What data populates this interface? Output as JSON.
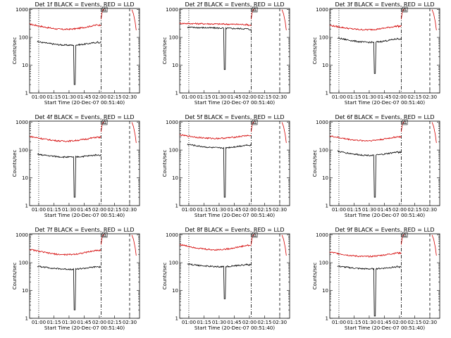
{
  "chart_data": [
    {
      "type": "line",
      "title": "Det 1f BLACK = Events, RED = LLD",
      "xlabel": "Start Time (20-Dec-07 00:51:40)",
      "ylabel": "Counts/sec",
      "yscale": "log",
      "ylim": [
        1,
        1100
      ],
      "xlim": [
        0,
        100
      ],
      "x_ticks": [
        "01:00",
        "01:15",
        "01:30",
        "01:45",
        "02:00",
        "02:15",
        "02:30"
      ],
      "y_ticks": [
        "1",
        "10",
        "100",
        "1000"
      ],
      "vlines": {
        "dotted": [
          8.3
        ],
        "dashdot": [
          65
        ],
        "dashed": [
          91
        ]
      },
      "series": [
        {
          "name": "LLD",
          "color": "#d40000",
          "profile": "bowl",
          "start": 0,
          "end": 65,
          "base": 300,
          "dip": 0.65
        },
        {
          "name": "Events",
          "color": "#000000",
          "profile": "bowl",
          "start": 7,
          "end": 65,
          "base": 70,
          "dip": 0.75,
          "spike_at": 41,
          "spike_val": 2
        }
      ],
      "flare": {
        "x": [
          65,
          66,
          67,
          68
        ],
        "y": [
          450,
          850,
          1000,
          1050
        ]
      },
      "decay": {
        "x": [
          93,
          94.5,
          96,
          97
        ],
        "y": [
          1000,
          700,
          350,
          180
        ]
      },
      "annotation": "Δ"
    },
    {
      "type": "line",
      "title": "Det 2f BLACK = Events, RED = LLD",
      "xlabel": "Start Time (20-Dec-07 00:51:40)",
      "ylabel": "Counts/sec",
      "yscale": "log",
      "ylim": [
        1,
        1100
      ],
      "xlim": [
        0,
        100
      ],
      "x_ticks": [
        "01:00",
        "01:15",
        "01:30",
        "01:45",
        "02:00",
        "02:15",
        "02:30"
      ],
      "y_ticks": [
        "1",
        "10",
        "100",
        "1000"
      ],
      "vlines": {
        "dotted": [
          8.3
        ],
        "dashdot": [
          65
        ],
        "dashed": [
          91
        ]
      },
      "series": [
        {
          "name": "LLD",
          "color": "#d40000",
          "profile": "flat",
          "start": 0,
          "end": 65,
          "base": 320,
          "dip": 0.9
        },
        {
          "name": "Events",
          "color": "#000000",
          "profile": "flat",
          "start": 7,
          "end": 65,
          "base": 230,
          "dip": 0.88,
          "spike_at": 41,
          "spike_val": 7
        }
      ],
      "flare": {
        "x": [
          65,
          66,
          67,
          68
        ],
        "y": [
          450,
          850,
          1000,
          1050
        ]
      },
      "decay": {
        "x": [
          93,
          94.5,
          96,
          97
        ],
        "y": [
          1000,
          700,
          350,
          180
        ]
      },
      "annotation": "Δ"
    },
    {
      "type": "line",
      "title": "Det 3f BLACK = Events, RED = LLD",
      "xlabel": "Start Time (20-Dec-07 00:51:40)",
      "ylabel": "Counts/sec",
      "yscale": "log",
      "ylim": [
        1,
        1100
      ],
      "xlim": [
        0,
        100
      ],
      "x_ticks": [
        "01:00",
        "01:15",
        "01:30",
        "01:45",
        "02:00",
        "02:15",
        "02:30"
      ],
      "y_ticks": [
        "1",
        "10",
        "100",
        "1000"
      ],
      "vlines": {
        "dotted": [
          8.3
        ],
        "dashdot": [
          65
        ],
        "dashed": [
          91
        ]
      },
      "series": [
        {
          "name": "LLD",
          "color": "#d40000",
          "profile": "bowl",
          "start": 0,
          "end": 65,
          "base": 270,
          "dip": 0.7
        },
        {
          "name": "Events",
          "color": "#000000",
          "profile": "bowl",
          "start": 7,
          "end": 65,
          "base": 95,
          "dip": 0.7,
          "spike_at": 41,
          "spike_val": 5
        }
      ],
      "flare": {
        "x": [
          65,
          66,
          67,
          68
        ],
        "y": [
          450,
          850,
          1000,
          1050
        ]
      },
      "decay": {
        "x": [
          93,
          94.5,
          96,
          97
        ],
        "y": [
          1000,
          700,
          350,
          180
        ]
      },
      "annotation": "Δ"
    },
    {
      "type": "line",
      "title": "Det 4f BLACK = Events, RED = LLD",
      "xlabel": "Start Time (20-Dec-07 00:51:40)",
      "ylabel": "Counts/sec",
      "yscale": "log",
      "ylim": [
        1,
        1100
      ],
      "xlim": [
        0,
        100
      ],
      "x_ticks": [
        "01:00",
        "01:15",
        "01:30",
        "01:45",
        "02:00",
        "02:15",
        "02:30"
      ],
      "y_ticks": [
        "1",
        "10",
        "100",
        "1000"
      ],
      "vlines": {
        "dotted": [
          8.3
        ],
        "dashdot": [
          65
        ],
        "dashed": [
          91
        ]
      },
      "series": [
        {
          "name": "LLD",
          "color": "#d40000",
          "profile": "bowl",
          "start": 0,
          "end": 65,
          "base": 310,
          "dip": 0.68
        },
        {
          "name": "Events",
          "color": "#000000",
          "profile": "bowl",
          "start": 7,
          "end": 65,
          "base": 70,
          "dip": 0.8,
          "spike_at": 41,
          "spike_val": 2
        }
      ],
      "flare": {
        "x": [
          65,
          66,
          67,
          68
        ],
        "y": [
          450,
          850,
          1000,
          1050
        ]
      },
      "decay": {
        "x": [
          93,
          94.5,
          96,
          97
        ],
        "y": [
          1000,
          700,
          350,
          180
        ]
      },
      "annotation": "Δ"
    },
    {
      "type": "line",
      "title": "Det 5f BLACK = Events, RED = LLD",
      "xlabel": "Start Time (20-Dec-07 00:51:40)",
      "ylabel": "Counts/sec",
      "yscale": "log",
      "ylim": [
        1,
        1100
      ],
      "xlim": [
        0,
        100
      ],
      "x_ticks": [
        "01:00",
        "01:15",
        "01:30",
        "01:45",
        "02:00",
        "02:15",
        "02:30"
      ],
      "y_ticks": [
        "1",
        "10",
        "100",
        "1000"
      ],
      "vlines": {
        "dotted": [
          8.3
        ],
        "dashdot": [
          65
        ],
        "dashed": [
          91
        ]
      },
      "series": [
        {
          "name": "LLD",
          "color": "#d40000",
          "profile": "bowl",
          "start": 0,
          "end": 65,
          "base": 350,
          "dip": 0.75
        },
        {
          "name": "Events",
          "color": "#000000",
          "profile": "bowl",
          "start": 7,
          "end": 65,
          "base": 160,
          "dip": 0.75,
          "spike_at": 41,
          "spike_val": 2
        }
      ],
      "flare": {
        "x": [
          65,
          66,
          67,
          68
        ],
        "y": [
          450,
          850,
          1000,
          1050
        ]
      },
      "decay": {
        "x": [
          93,
          94.5,
          96,
          97
        ],
        "y": [
          1000,
          700,
          350,
          180
        ]
      },
      "annotation": "Δ"
    },
    {
      "type": "line",
      "title": "Det 6f BLACK = Events, RED = LLD",
      "xlabel": "Start Time (20-Dec-07 00:51:40)",
      "ylabel": "Counts/sec",
      "yscale": "log",
      "ylim": [
        1,
        1100
      ],
      "xlim": [
        0,
        100
      ],
      "x_ticks": [
        "01:00",
        "01:15",
        "01:30",
        "01:45",
        "02:00",
        "02:15",
        "02:30"
      ],
      "y_ticks": [
        "1",
        "10",
        "100",
        "1000"
      ],
      "vlines": {
        "dotted": [
          8.3
        ],
        "dashdot": [
          65
        ],
        "dashed": [
          91
        ]
      },
      "series": [
        {
          "name": "LLD",
          "color": "#d40000",
          "profile": "bowl",
          "start": 0,
          "end": 65,
          "base": 320,
          "dip": 0.68
        },
        {
          "name": "Events",
          "color": "#000000",
          "profile": "bowl",
          "start": 7,
          "end": 65,
          "base": 90,
          "dip": 0.72,
          "spike_at": 41,
          "spike_val": 2
        }
      ],
      "flare": {
        "x": [
          65,
          66,
          67,
          68
        ],
        "y": [
          450,
          850,
          1000,
          1050
        ]
      },
      "decay": {
        "x": [
          93,
          94.5,
          96,
          97
        ],
        "y": [
          1000,
          700,
          350,
          180
        ]
      },
      "annotation": "Δ"
    },
    {
      "type": "line",
      "title": "Det 7f BLACK = Events, RED = LLD",
      "xlabel": "Start Time (20-Dec-07 00:51:40)",
      "ylabel": "Counts/sec",
      "yscale": "log",
      "ylim": [
        1,
        1100
      ],
      "xlim": [
        0,
        100
      ],
      "x_ticks": [
        "01:00",
        "01:15",
        "01:30",
        "01:45",
        "02:00",
        "02:15",
        "02:30"
      ],
      "y_ticks": [
        "1",
        "10",
        "100",
        "1000"
      ],
      "vlines": {
        "dotted": [
          8.3
        ],
        "dashdot": [
          65
        ],
        "dashed": [
          91
        ]
      },
      "series": [
        {
          "name": "LLD",
          "color": "#d40000",
          "profile": "bowl",
          "start": 0,
          "end": 65,
          "base": 300,
          "dip": 0.65
        },
        {
          "name": "Events",
          "color": "#000000",
          "profile": "bowl",
          "start": 7,
          "end": 65,
          "base": 75,
          "dip": 0.78,
          "spike_at": 41,
          "spike_val": 2
        }
      ],
      "flare": {
        "x": [
          65,
          66,
          67,
          68
        ],
        "y": [
          450,
          850,
          1000,
          1050
        ]
      },
      "decay": {
        "x": [
          93,
          94.5,
          96,
          97
        ],
        "y": [
          1000,
          700,
          350,
          180
        ]
      },
      "annotation": "Δ"
    },
    {
      "type": "line",
      "title": "Det 8f BLACK = Events, RED = LLD",
      "xlabel": "Start Time (20-Dec-07 00:51:40)",
      "ylabel": "Counts/sec",
      "yscale": "log",
      "ylim": [
        1,
        1100
      ],
      "xlim": [
        0,
        100
      ],
      "x_ticks": [
        "01:00",
        "01:15",
        "01:30",
        "01:45",
        "02:00",
        "02:15",
        "02:30"
      ],
      "y_ticks": [
        "1",
        "10",
        "100",
        "1000"
      ],
      "vlines": {
        "dotted": [
          8.3
        ],
        "dashdot": [
          65
        ],
        "dashed": [
          91
        ]
      },
      "series": [
        {
          "name": "LLD",
          "color": "#d40000",
          "profile": "bowl",
          "start": 0,
          "end": 65,
          "base": 450,
          "dip": 0.65
        },
        {
          "name": "Events",
          "color": "#000000",
          "profile": "bowl",
          "start": 7,
          "end": 65,
          "base": 90,
          "dip": 0.8,
          "spike_at": 41,
          "spike_val": 5
        }
      ],
      "flare": {
        "x": [
          65,
          66,
          67,
          68
        ],
        "y": [
          450,
          850,
          1000,
          1050
        ]
      },
      "decay": {
        "x": [
          93,
          94.5,
          96,
          97
        ],
        "y": [
          1000,
          700,
          350,
          180
        ]
      },
      "annotation": "Δ"
    },
    {
      "type": "line",
      "title": "Det 9f BLACK = Events, RED = LLD",
      "xlabel": "Start Time (20-Dec-07 00:51:40)",
      "ylabel": "Counts/sec",
      "yscale": "log",
      "ylim": [
        1,
        1100
      ],
      "xlim": [
        0,
        100
      ],
      "x_ticks": [
        "01:00",
        "01:15",
        "01:30",
        "01:45",
        "02:00",
        "02:15",
        "02:30"
      ],
      "y_ticks": [
        "1",
        "10",
        "100",
        "1000"
      ],
      "vlines": {
        "dotted": [
          8.3
        ],
        "dashdot": [
          65
        ],
        "dashed": [
          91
        ]
      },
      "series": [
        {
          "name": "LLD",
          "color": "#d40000",
          "profile": "bowl",
          "start": 0,
          "end": 65,
          "base": 240,
          "dip": 0.7
        },
        {
          "name": "Events",
          "color": "#000000",
          "profile": "bowl",
          "start": 7,
          "end": 65,
          "base": 75,
          "dip": 0.8,
          "spike_at": 41,
          "spike_val": 1.2
        }
      ],
      "flare": {
        "x": [
          65,
          66,
          67,
          68
        ],
        "y": [
          450,
          850,
          1000,
          1050
        ]
      },
      "decay": {
        "x": [
          93,
          94.5,
          96,
          97
        ],
        "y": [
          1000,
          700,
          350,
          180
        ]
      },
      "annotation": "Δ"
    }
  ]
}
